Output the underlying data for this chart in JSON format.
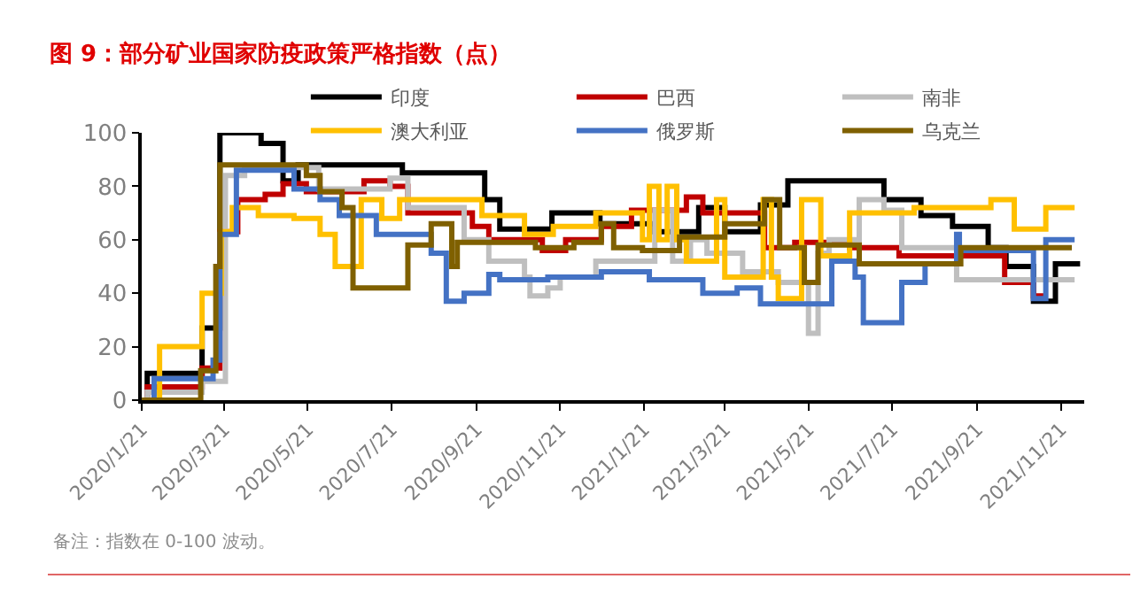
{
  "chart_data": {
    "type": "step",
    "title": "图 9：部分矿业国家防疫政策严格指数（点）",
    "annotations": [
      "备注：指数在 0-100 波动。"
    ],
    "series": [
      {
        "name": "印度",
        "color": "#000000",
        "x": [
          "2020-01-21",
          "2020-01-25",
          "2020-03-05",
          "2020-03-18",
          "2020-04-17",
          "2020-05-03",
          "2020-05-14",
          "2020-07-29",
          "2020-09-27",
          "2020-10-08",
          "2020-11-15",
          "2020-12-20",
          "2021-01-29",
          "2021-03-02",
          "2021-03-21",
          "2021-04-16",
          "2021-05-06",
          "2021-07-15",
          "2021-08-11",
          "2021-09-03",
          "2021-09-29",
          "2021-10-12",
          "2021-11-01",
          "2021-11-17",
          "2021-12-05"
        ],
        "values": [
          0,
          10,
          27,
          100,
          96,
          82,
          88,
          85,
          75,
          64,
          70,
          66,
          63,
          72,
          63,
          73,
          82,
          75,
          69,
          65,
          57,
          50,
          37,
          51,
          51
        ]
      },
      {
        "name": "巴西",
        "color": "#c00000",
        "x": [
          "2020-01-21",
          "2020-01-25",
          "2020-03-05",
          "2020-03-18",
          "2020-03-31",
          "2020-04-20",
          "2020-05-03",
          "2020-05-20",
          "2020-07-01",
          "2020-07-20",
          "2020-08-02",
          "2020-09-18",
          "2020-09-30",
          "2020-11-08",
          "2020-11-25",
          "2020-12-21",
          "2021-01-12",
          "2021-02-21",
          "2021-03-05",
          "2021-04-19",
          "2021-05-11",
          "2021-06-20",
          "2021-07-26",
          "2021-10-11",
          "2021-11-01",
          "2021-11-10"
        ],
        "values": [
          0,
          5,
          12,
          63,
          75,
          77,
          81,
          78,
          82,
          80,
          70,
          65,
          60,
          56,
          60,
          65,
          71,
          76,
          70,
          57,
          59,
          57,
          54,
          44,
          39,
          39
        ]
      },
      {
        "name": "南非",
        "color": "#bfbfbf",
        "x": [
          "2020-01-21",
          "2020-01-25",
          "2020-03-05",
          "2020-03-22",
          "2020-04-05",
          "2020-05-29",
          "2020-07-20",
          "2020-08-02",
          "2020-09-12",
          "2020-09-30",
          "2020-10-26",
          "2020-10-30",
          "2020-11-12",
          "2020-11-21",
          "2020-12-17",
          "2021-01-29",
          "2021-02-11",
          "2021-02-24",
          "2021-03-08",
          "2021-04-03",
          "2021-04-29",
          "2021-05-21",
          "2021-05-28",
          "2021-06-05",
          "2021-06-27",
          "2021-07-15",
          "2021-07-28",
          "2021-09-06",
          "2021-12-01"
        ],
        "values": [
          0,
          3,
          7,
          84,
          87,
          79,
          83,
          72,
          60,
          52,
          46,
          39,
          42,
          46,
          52,
          71,
          52,
          60,
          55,
          48,
          44,
          25,
          55,
          60,
          75,
          71,
          57,
          45,
          45
        ]
      },
      {
        "name": "澳大利亚",
        "color": "#ffc000",
        "x": [
          "2020-01-21",
          "2020-02-03",
          "2020-03-05",
          "2020-03-19",
          "2020-03-27",
          "2020-04-15",
          "2020-05-11",
          "2020-05-30",
          "2020-06-10",
          "2020-06-29",
          "2020-07-14",
          "2020-07-27",
          "2020-09-25",
          "2020-10-26",
          "2020-11-16",
          "2020-12-17",
          "2021-01-20",
          "2021-01-25",
          "2021-02-01",
          "2021-02-07",
          "2021-02-14",
          "2021-02-21",
          "2021-03-15",
          "2021-03-21",
          "2021-04-18",
          "2021-04-24",
          "2021-04-29",
          "2021-05-16",
          "2021-05-30",
          "2021-06-20",
          "2021-08-06",
          "2021-10-01",
          "2021-10-18",
          "2021-11-10",
          "2021-12-01"
        ],
        "values": [
          0,
          20,
          40,
          63,
          72,
          69,
          68,
          62,
          50,
          75,
          68,
          75,
          69,
          62,
          65,
          70,
          60,
          80,
          60,
          80,
          60,
          52,
          75,
          46,
          75,
          46,
          38,
          75,
          54,
          70,
          72,
          75,
          64,
          72,
          72
        ]
      },
      {
        "name": "俄罗斯",
        "color": "#4472c4",
        "x": [
          "2020-01-21",
          "2020-01-30",
          "2020-03-13",
          "2020-03-18",
          "2020-03-30",
          "2020-05-11",
          "2020-05-30",
          "2020-06-13",
          "2020-07-10",
          "2020-08-19",
          "2020-08-30",
          "2020-09-12",
          "2020-09-30",
          "2020-10-08",
          "2020-11-12",
          "2020-12-21",
          "2021-01-25",
          "2021-03-05",
          "2021-03-30",
          "2021-04-16",
          "2021-06-07",
          "2021-06-24",
          "2021-06-30",
          "2021-07-28",
          "2021-08-14",
          "2021-09-06",
          "2021-09-08",
          "2021-11-01",
          "2021-11-10",
          "2021-12-01"
        ],
        "values": [
          0,
          8,
          15,
          62,
          86,
          79,
          75,
          69,
          62,
          55,
          37,
          40,
          47,
          45,
          46,
          48,
          45,
          40,
          42,
          36,
          52,
          46,
          29,
          44,
          51,
          62,
          56,
          38,
          60,
          60
        ]
      },
      {
        "name": "乌克兰",
        "color": "#7f6000",
        "x": [
          "2020-01-21",
          "2020-03-04",
          "2020-03-15",
          "2020-03-18",
          "2020-05-20",
          "2020-05-30",
          "2020-06-15",
          "2020-06-23",
          "2020-08-02",
          "2020-08-19",
          "2020-09-03",
          "2020-09-07",
          "2020-11-03",
          "2020-12-01",
          "2020-12-21",
          "2020-12-30",
          "2021-01-20",
          "2021-02-16",
          "2021-03-21",
          "2021-04-19",
          "2021-04-30",
          "2021-05-18",
          "2021-05-28",
          "2021-06-27",
          "2021-09-09",
          "2021-11-29"
        ],
        "values": [
          0,
          11,
          50,
          88,
          84,
          78,
          72,
          42,
          58,
          66,
          50,
          59,
          57,
          59,
          66,
          57,
          56,
          61,
          66,
          75,
          57,
          44,
          58,
          51,
          57,
          57
        ]
      }
    ],
    "xlim": [
      "2020-01-21",
      "2021-12-08"
    ],
    "xticks": [
      {
        "value": "2020-01-21",
        "label": "2020/1/21"
      },
      {
        "value": "2020-03-21",
        "label": "2020/3/21"
      },
      {
        "value": "2020-05-21",
        "label": "2020/5/21"
      },
      {
        "value": "2020-07-21",
        "label": "2020/7/21"
      },
      {
        "value": "2020-09-21",
        "label": "2020/9/21"
      },
      {
        "value": "2020-11-21",
        "label": "2020/11/21"
      },
      {
        "value": "2021-01-21",
        "label": "2021/1/21"
      },
      {
        "value": "2021-03-21",
        "label": "2021/3/21"
      },
      {
        "value": "2021-05-21",
        "label": "2021/5/21"
      },
      {
        "value": "2021-07-21",
        "label": "2021/7/21"
      },
      {
        "value": "2021-09-21",
        "label": "2021/9/21"
      },
      {
        "value": "2021-11-21",
        "label": "2021/11/21"
      }
    ],
    "ylim": [
      0,
      100
    ],
    "yticks": [
      0,
      20,
      40,
      60,
      80,
      100
    ],
    "grid": false,
    "legend": "top",
    "marker": "none",
    "line_style": "solid"
  }
}
